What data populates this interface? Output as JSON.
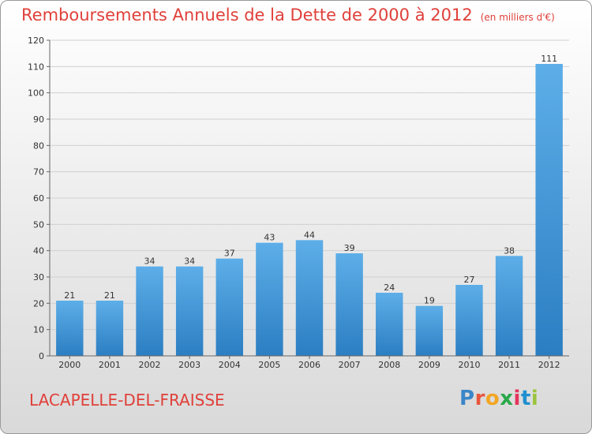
{
  "header": {
    "title": "Remboursements Annuels de la Dette de 2000 à 2012",
    "unit": "(en milliers d'€)"
  },
  "footer": {
    "commune": "LACAPELLE-DEL-FRAISSE",
    "logo_text": "Proxiti",
    "logo_colors": [
      "#3a86c8",
      "#e8563d",
      "#f2a623",
      "#2aa84a",
      "#e3355c",
      "#1f8fd0",
      "#9ac43c"
    ]
  },
  "colors": {
    "title": "#e0403a",
    "bar_light": "#5daee8",
    "bar_dark": "#2b7ec2"
  },
  "chart_data": {
    "type": "bar",
    "title": "Remboursements Annuels de la Dette de 2000 à 2012",
    "xlabel": "",
    "ylabel": "",
    "categories": [
      "2000",
      "2001",
      "2002",
      "2003",
      "2004",
      "2005",
      "2006",
      "2007",
      "2008",
      "2009",
      "2010",
      "2011",
      "2012"
    ],
    "values": [
      21,
      21,
      34,
      34,
      37,
      43,
      44,
      39,
      24,
      19,
      27,
      38,
      111
    ],
    "ylim": [
      0,
      120
    ],
    "yticks": [
      0,
      10,
      20,
      30,
      40,
      50,
      60,
      70,
      80,
      90,
      100,
      110,
      120
    ],
    "grid": "horizontal",
    "data_labels": true
  }
}
